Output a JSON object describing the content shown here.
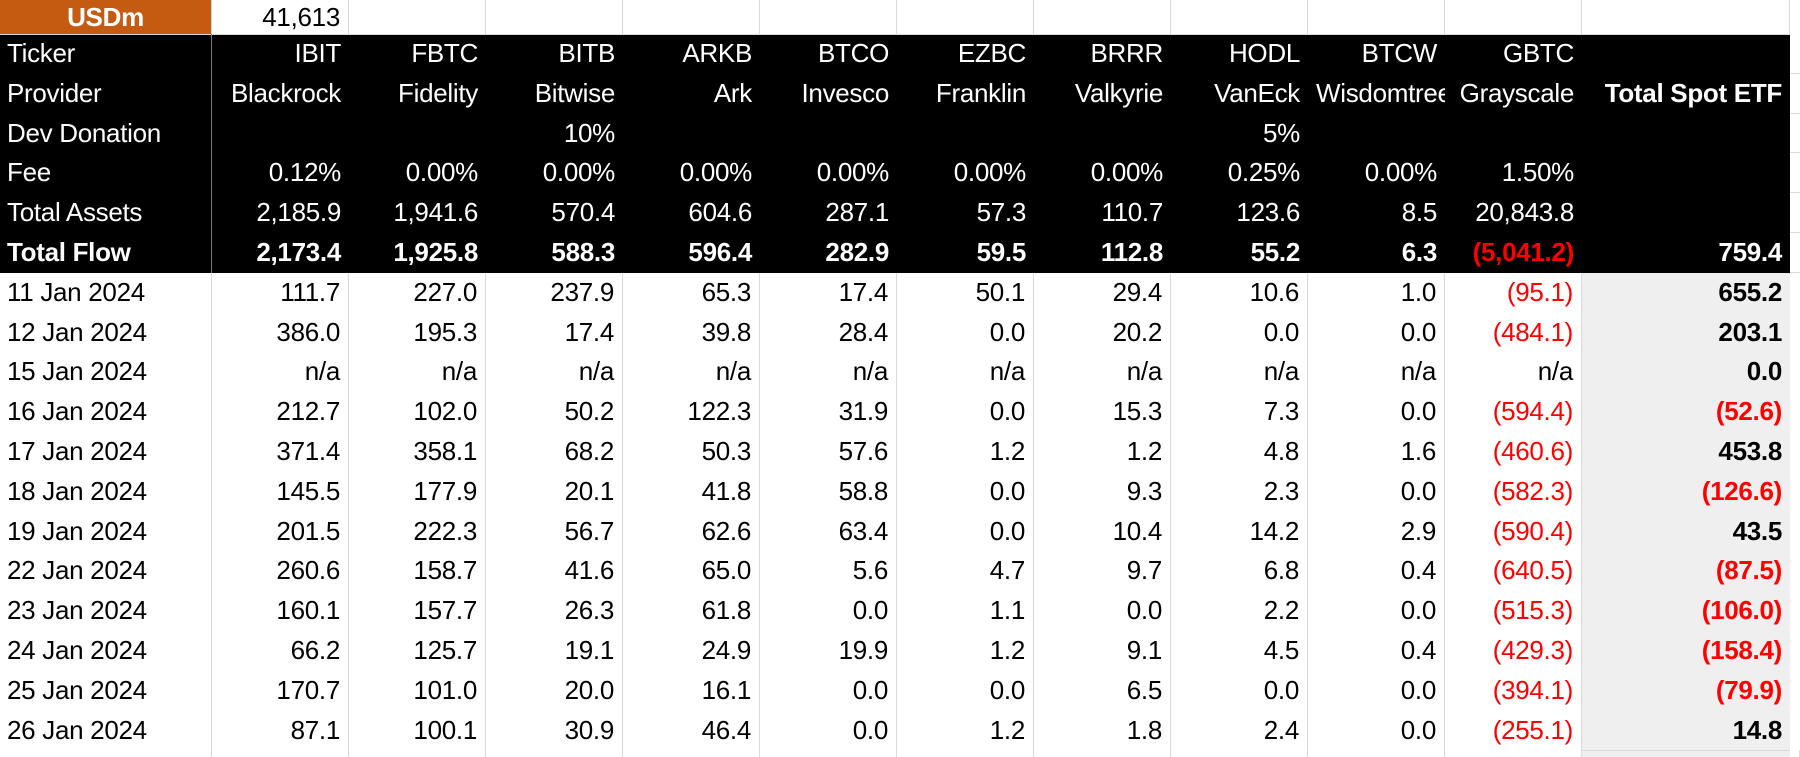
{
  "sheet": {
    "unit_label": "USDm",
    "unit_value": "41,613"
  },
  "colors": {
    "accent_orange": "#C55A11",
    "header_bg": "#000000",
    "header_text": "#FFFFFF",
    "negative_red": "#FF0000",
    "total_col_bg": "#EFEFEF",
    "gridline": "#D9D9D9",
    "marker_green": "#1B7E1B"
  },
  "table": {
    "total_col_header": "Total Spot ETF",
    "header_rows": [
      {
        "label": "Ticker",
        "bold": false,
        "total_bold": false,
        "values": [
          "IBIT",
          "FBTC",
          "BITB",
          "ARKB",
          "BTCO",
          "EZBC",
          "BRRR",
          "HODL",
          "BTCW",
          "GBTC"
        ],
        "total": ""
      },
      {
        "label": "Provider",
        "bold": false,
        "total_bold": true,
        "values": [
          "Blackrock",
          "Fidelity",
          "Bitwise",
          "Ark",
          "Invesco",
          "Franklin",
          "Valkyrie",
          "VanEck",
          "Wisdomtree",
          "Grayscale"
        ],
        "total": "Total Spot ETF"
      },
      {
        "label": "Dev Donation",
        "bold": false,
        "total_bold": false,
        "values": [
          "",
          "",
          "10%",
          "",
          "",
          "",
          "",
          "5%",
          "",
          ""
        ],
        "total": ""
      },
      {
        "label": "Fee",
        "bold": false,
        "total_bold": false,
        "values": [
          "0.12%",
          "0.00%",
          "0.00%",
          "0.00%",
          "0.00%",
          "0.00%",
          "0.00%",
          "0.25%",
          "0.00%",
          "1.50%"
        ],
        "total": ""
      },
      {
        "label": "Total Assets",
        "bold": false,
        "total_bold": false,
        "values": [
          "2,185.9",
          "1,941.6",
          "570.4",
          "604.6",
          "287.1",
          "57.3",
          "110.7",
          "123.6",
          "8.5",
          "20,843.8"
        ],
        "total": ""
      },
      {
        "label": "Total Flow",
        "bold": true,
        "total_bold": true,
        "values": [
          "2,173.4",
          "1,925.8",
          "588.3",
          "596.4",
          "282.9",
          "59.5",
          "112.8",
          "55.2",
          "6.3",
          "(5,041.2)"
        ],
        "total": "759.4"
      }
    ],
    "date_rows": [
      {
        "date": "11 Jan 2024",
        "values": [
          "111.7",
          "227.0",
          "237.9",
          "65.3",
          "17.4",
          "50.1",
          "29.4",
          "10.6",
          "1.0",
          "(95.1)"
        ],
        "total": "655.2",
        "marker": true
      },
      {
        "date": "12 Jan 2024",
        "values": [
          "386.0",
          "195.3",
          "17.4",
          "39.8",
          "28.4",
          "0.0",
          "20.2",
          "0.0",
          "0.0",
          "(484.1)"
        ],
        "total": "203.1",
        "marker": true
      },
      {
        "date": "15 Jan 2024",
        "values": [
          "n/a",
          "n/a",
          "n/a",
          "n/a",
          "n/a",
          "n/a",
          "n/a",
          "n/a",
          "n/a",
          "n/a"
        ],
        "total": "0.0",
        "marker": false
      },
      {
        "date": "16 Jan 2024",
        "values": [
          "212.7",
          "102.0",
          "50.2",
          "122.3",
          "31.9",
          "0.0",
          "15.3",
          "7.3",
          "0.0",
          "(594.4)"
        ],
        "total": "(52.6)",
        "marker": true
      },
      {
        "date": "17 Jan 2024",
        "values": [
          "371.4",
          "358.1",
          "68.2",
          "50.3",
          "57.6",
          "1.2",
          "1.2",
          "4.8",
          "1.6",
          "(460.6)"
        ],
        "total": "453.8",
        "marker": true
      },
      {
        "date": "18 Jan 2024",
        "values": [
          "145.5",
          "177.9",
          "20.1",
          "41.8",
          "58.8",
          "0.0",
          "9.3",
          "2.3",
          "0.0",
          "(582.3)"
        ],
        "total": "(126.6)",
        "marker": true
      },
      {
        "date": "19 Jan 2024",
        "values": [
          "201.5",
          "222.3",
          "56.7",
          "62.6",
          "63.4",
          "0.0",
          "10.4",
          "14.2",
          "2.9",
          "(590.4)"
        ],
        "total": "43.5",
        "marker": false
      },
      {
        "date": "22 Jan 2024",
        "values": [
          "260.6",
          "158.7",
          "41.6",
          "65.0",
          "5.6",
          "4.7",
          "9.7",
          "6.8",
          "0.4",
          "(640.5)"
        ],
        "total": "(87.5)",
        "marker": true
      },
      {
        "date": "23 Jan 2024",
        "values": [
          "160.1",
          "157.7",
          "26.3",
          "61.8",
          "0.0",
          "1.1",
          "0.0",
          "2.2",
          "0.0",
          "(515.3)"
        ],
        "total": "(106.0)",
        "marker": false
      },
      {
        "date": "24 Jan 2024",
        "values": [
          "66.2",
          "125.7",
          "19.1",
          "24.9",
          "19.9",
          "1.2",
          "9.1",
          "4.5",
          "0.4",
          "(429.3)"
        ],
        "total": "(158.4)",
        "marker": false
      },
      {
        "date": "25 Jan 2024",
        "values": [
          "170.7",
          "101.0",
          "20.0",
          "16.1",
          "0.0",
          "0.0",
          "6.5",
          "0.0",
          "0.0",
          "(394.1)"
        ],
        "total": "(79.9)",
        "marker": false
      },
      {
        "date": "26 Jan 2024",
        "values": [
          "87.1",
          "100.1",
          "30.9",
          "46.4",
          "0.0",
          "1.2",
          "1.8",
          "2.4",
          "0.0",
          "(255.1)"
        ],
        "total": "14.8",
        "marker": false
      }
    ]
  }
}
